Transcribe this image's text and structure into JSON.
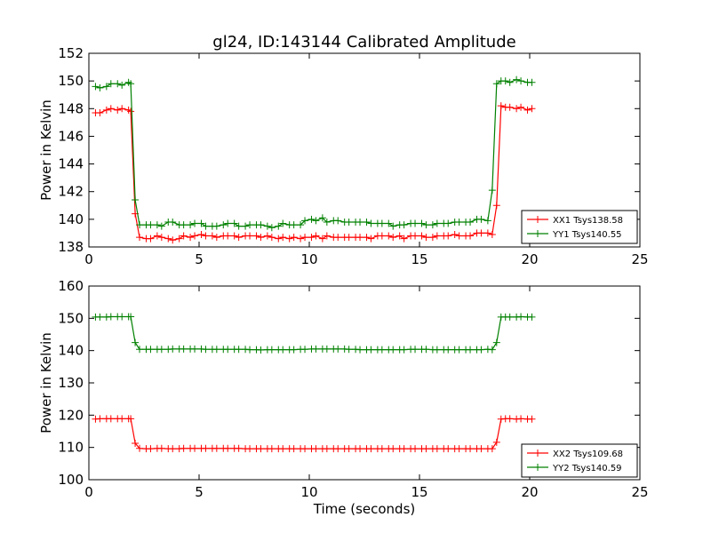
{
  "title": "gl24, ID:143144 Calibrated Amplitude",
  "colors": {
    "red": "#ff0000",
    "green": "#008000",
    "axis": "#000000"
  },
  "chart_data": [
    {
      "type": "line",
      "title": "gl24, ID:143144 Calibrated Amplitude",
      "xlabel": "",
      "ylabel": "Power in Kelvin",
      "xlim": [
        0,
        25
      ],
      "ylim": [
        138,
        152
      ],
      "xticks": [
        0,
        5,
        10,
        15,
        20,
        25
      ],
      "yticks": [
        138,
        140,
        142,
        144,
        146,
        148,
        150,
        152
      ],
      "legend_position": "lower-right",
      "series": [
        {
          "name": "XX1 Tsys138.58",
          "color": "#ff0000",
          "x": [
            0.3,
            0.5,
            0.8,
            1.0,
            1.3,
            1.5,
            1.8,
            1.9,
            2.1,
            2.3,
            2.6,
            2.8,
            3.1,
            3.3,
            3.6,
            3.8,
            4.1,
            4.3,
            4.6,
            4.8,
            5.1,
            5.3,
            5.6,
            5.8,
            6.1,
            6.3,
            6.6,
            6.8,
            7.1,
            7.3,
            7.6,
            7.8,
            8.1,
            8.3,
            8.6,
            8.8,
            9.1,
            9.3,
            9.6,
            9.8,
            10.1,
            10.3,
            10.6,
            10.8,
            11.1,
            11.3,
            11.6,
            11.8,
            12.1,
            12.3,
            12.6,
            12.8,
            13.1,
            13.3,
            13.6,
            13.8,
            14.1,
            14.3,
            14.6,
            14.8,
            15.1,
            15.3,
            15.6,
            15.8,
            16.1,
            16.3,
            16.6,
            16.8,
            17.1,
            17.3,
            17.6,
            17.8,
            18.1,
            18.3,
            18.5,
            18.7,
            18.9,
            19.1,
            19.4,
            19.6,
            19.9,
            20.1
          ],
          "y": [
            147.7,
            147.7,
            147.9,
            148.0,
            147.9,
            148.0,
            147.9,
            147.8,
            140.4,
            138.7,
            138.6,
            138.6,
            138.8,
            138.7,
            138.6,
            138.5,
            138.6,
            138.8,
            138.7,
            138.8,
            138.9,
            138.8,
            138.8,
            138.7,
            138.8,
            138.8,
            138.8,
            138.7,
            138.8,
            138.8,
            138.8,
            138.7,
            138.8,
            138.7,
            138.6,
            138.7,
            138.6,
            138.7,
            138.6,
            138.7,
            138.7,
            138.8,
            138.6,
            138.8,
            138.7,
            138.7,
            138.7,
            138.7,
            138.7,
            138.7,
            138.7,
            138.6,
            138.8,
            138.8,
            138.8,
            138.7,
            138.8,
            138.6,
            138.8,
            138.8,
            138.8,
            138.7,
            138.7,
            138.8,
            138.8,
            138.8,
            138.9,
            138.8,
            138.8,
            138.8,
            139.0,
            139.0,
            139.0,
            138.9,
            141.0,
            148.2,
            148.1,
            148.1,
            148.0,
            148.1,
            147.9,
            148.0
          ]
        },
        {
          "name": "YY1 Tsys140.55",
          "color": "#008000",
          "x": [
            0.3,
            0.5,
            0.8,
            1.0,
            1.3,
            1.5,
            1.8,
            1.9,
            2.1,
            2.3,
            2.6,
            2.8,
            3.1,
            3.3,
            3.6,
            3.8,
            4.1,
            4.3,
            4.6,
            4.8,
            5.1,
            5.3,
            5.6,
            5.8,
            6.1,
            6.3,
            6.6,
            6.8,
            7.1,
            7.3,
            7.6,
            7.8,
            8.1,
            8.3,
            8.6,
            8.8,
            9.1,
            9.3,
            9.6,
            9.8,
            10.1,
            10.3,
            10.6,
            10.8,
            11.1,
            11.3,
            11.6,
            11.8,
            12.1,
            12.3,
            12.6,
            12.8,
            13.1,
            13.3,
            13.6,
            13.8,
            14.1,
            14.3,
            14.6,
            14.8,
            15.1,
            15.3,
            15.6,
            15.8,
            16.1,
            16.3,
            16.6,
            16.8,
            17.1,
            17.3,
            17.6,
            17.8,
            18.1,
            18.3,
            18.5,
            18.7,
            18.9,
            19.1,
            19.4,
            19.6,
            19.9,
            20.1
          ],
          "y": [
            149.6,
            149.5,
            149.6,
            149.8,
            149.8,
            149.7,
            149.9,
            149.8,
            141.4,
            139.6,
            139.6,
            139.6,
            139.6,
            139.5,
            139.8,
            139.8,
            139.6,
            139.6,
            139.6,
            139.7,
            139.7,
            139.5,
            139.5,
            139.5,
            139.6,
            139.7,
            139.7,
            139.5,
            139.5,
            139.6,
            139.6,
            139.6,
            139.5,
            139.4,
            139.5,
            139.7,
            139.6,
            139.6,
            139.6,
            139.9,
            140.0,
            139.9,
            140.1,
            139.8,
            139.9,
            139.9,
            139.8,
            139.8,
            139.8,
            139.8,
            139.8,
            139.7,
            139.7,
            139.7,
            139.7,
            139.5,
            139.6,
            139.6,
            139.7,
            139.7,
            139.7,
            139.6,
            139.6,
            139.7,
            139.7,
            139.7,
            139.8,
            139.8,
            139.8,
            139.8,
            140.0,
            140.0,
            139.9,
            142.1,
            149.8,
            150.0,
            150.0,
            149.9,
            150.1,
            150.0,
            149.9,
            149.9
          ]
        }
      ]
    },
    {
      "type": "line",
      "title": "",
      "xlabel": "Time (seconds)",
      "ylabel": "Power in Kelvin",
      "xlim": [
        0,
        25
      ],
      "ylim": [
        100,
        160
      ],
      "xticks": [
        0,
        5,
        10,
        15,
        20,
        25
      ],
      "yticks": [
        100,
        110,
        120,
        130,
        140,
        150,
        160
      ],
      "legend_position": "lower-right",
      "series": [
        {
          "name": "XX2 Tsys109.68",
          "color": "#ff0000",
          "x": [
            0.3,
            0.5,
            0.8,
            1.0,
            1.3,
            1.5,
            1.8,
            1.9,
            2.1,
            2.3,
            2.6,
            2.8,
            3.1,
            3.3,
            3.6,
            3.8,
            4.1,
            4.3,
            4.6,
            4.8,
            5.1,
            5.3,
            5.6,
            5.8,
            6.1,
            6.3,
            6.6,
            6.8,
            7.1,
            7.3,
            7.6,
            7.8,
            8.1,
            8.3,
            8.6,
            8.8,
            9.1,
            9.3,
            9.6,
            9.8,
            10.1,
            10.3,
            10.6,
            10.8,
            11.1,
            11.3,
            11.6,
            11.8,
            12.1,
            12.3,
            12.6,
            12.8,
            13.1,
            13.3,
            13.6,
            13.8,
            14.1,
            14.3,
            14.6,
            14.8,
            15.1,
            15.3,
            15.6,
            15.8,
            16.1,
            16.3,
            16.6,
            16.8,
            17.1,
            17.3,
            17.6,
            17.8,
            18.1,
            18.3,
            18.5,
            18.7,
            18.9,
            19.1,
            19.4,
            19.6,
            19.9,
            20.1
          ],
          "y": [
            118.8,
            118.9,
            118.9,
            118.9,
            118.9,
            118.9,
            118.9,
            118.9,
            111.3,
            109.7,
            109.6,
            109.6,
            109.7,
            109.7,
            109.6,
            109.6,
            109.6,
            109.7,
            109.7,
            109.7,
            109.7,
            109.7,
            109.7,
            109.7,
            109.7,
            109.7,
            109.7,
            109.7,
            109.6,
            109.6,
            109.6,
            109.6,
            109.6,
            109.6,
            109.6,
            109.6,
            109.6,
            109.6,
            109.6,
            109.6,
            109.6,
            109.6,
            109.6,
            109.6,
            109.6,
            109.6,
            109.6,
            109.6,
            109.6,
            109.6,
            109.6,
            109.6,
            109.6,
            109.6,
            109.6,
            109.6,
            109.6,
            109.6,
            109.6,
            109.6,
            109.6,
            109.6,
            109.6,
            109.6,
            109.6,
            109.6,
            109.6,
            109.6,
            109.6,
            109.6,
            109.6,
            109.6,
            109.6,
            109.6,
            111.6,
            118.8,
            118.9,
            118.9,
            118.8,
            118.9,
            118.8,
            118.8
          ]
        },
        {
          "name": "YY2 Tsys140.59",
          "color": "#008000",
          "x": [
            0.3,
            0.5,
            0.8,
            1.0,
            1.3,
            1.5,
            1.8,
            1.9,
            2.1,
            2.3,
            2.6,
            2.8,
            3.1,
            3.3,
            3.6,
            3.8,
            4.1,
            4.3,
            4.6,
            4.8,
            5.1,
            5.3,
            5.6,
            5.8,
            6.1,
            6.3,
            6.6,
            6.8,
            7.1,
            7.3,
            7.6,
            7.8,
            8.1,
            8.3,
            8.6,
            8.8,
            9.1,
            9.3,
            9.6,
            9.8,
            10.1,
            10.3,
            10.6,
            10.8,
            11.1,
            11.3,
            11.6,
            11.8,
            12.1,
            12.3,
            12.6,
            12.8,
            13.1,
            13.3,
            13.6,
            13.8,
            14.1,
            14.3,
            14.6,
            14.8,
            15.1,
            15.3,
            15.6,
            15.8,
            16.1,
            16.3,
            16.6,
            16.8,
            17.1,
            17.3,
            17.6,
            17.8,
            18.1,
            18.3,
            18.5,
            18.7,
            18.9,
            19.1,
            19.4,
            19.6,
            19.9,
            20.1
          ],
          "y": [
            150.4,
            150.4,
            150.4,
            150.5,
            150.5,
            150.5,
            150.5,
            150.5,
            142.5,
            140.4,
            140.4,
            140.4,
            140.4,
            140.4,
            140.4,
            140.5,
            140.5,
            140.5,
            140.5,
            140.5,
            140.5,
            140.4,
            140.4,
            140.4,
            140.4,
            140.4,
            140.4,
            140.4,
            140.4,
            140.3,
            140.3,
            140.2,
            140.3,
            140.3,
            140.3,
            140.3,
            140.3,
            140.3,
            140.4,
            140.4,
            140.5,
            140.5,
            140.5,
            140.5,
            140.5,
            140.5,
            140.5,
            140.4,
            140.4,
            140.3,
            140.3,
            140.3,
            140.3,
            140.3,
            140.3,
            140.3,
            140.3,
            140.3,
            140.4,
            140.4,
            140.4,
            140.4,
            140.3,
            140.3,
            140.3,
            140.3,
            140.3,
            140.3,
            140.3,
            140.3,
            140.3,
            140.3,
            140.4,
            140.3,
            142.5,
            150.4,
            150.4,
            150.4,
            150.4,
            150.5,
            150.4,
            150.4
          ]
        }
      ]
    }
  ]
}
